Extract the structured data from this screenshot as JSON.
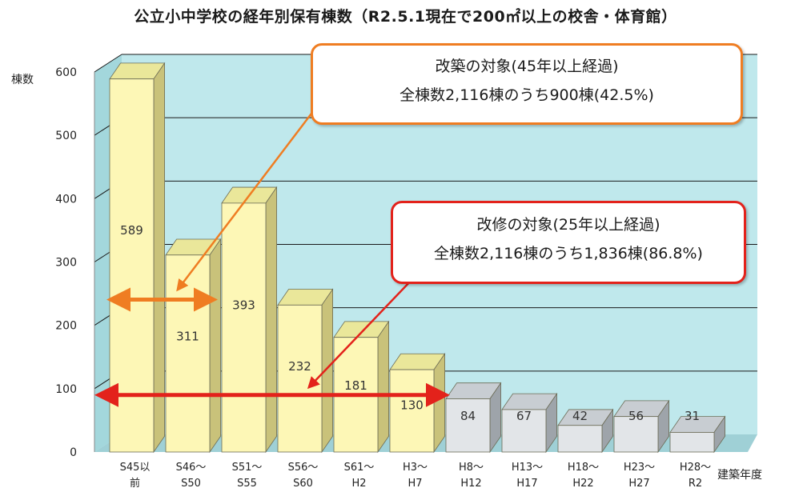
{
  "chart_data": {
    "type": "bar",
    "title": "公立小中学校の経年別保有棟数（R2.5.1現在で200㎡以上の校舎・体育館）",
    "ylabel": "棟数",
    "xlabel": "建築年度",
    "ylim": [
      0,
      600
    ],
    "yticks": [
      "0",
      "100",
      "200",
      "300",
      "400",
      "500",
      "600"
    ],
    "categories": [
      [
        "S45以",
        "前"
      ],
      [
        "S46～",
        "S50"
      ],
      [
        "S51～",
        "S55"
      ],
      [
        "S56～",
        "S60"
      ],
      [
        "S61～",
        "H2"
      ],
      [
        "H3～",
        "H7"
      ],
      [
        "H8～",
        "H12"
      ],
      [
        "H13～",
        "H17"
      ],
      [
        "H18～",
        "H22"
      ],
      [
        "H23～",
        "H27"
      ],
      [
        "H28～",
        "R2"
      ]
    ],
    "values": [
      589,
      311,
      393,
      232,
      181,
      130,
      84,
      67,
      42,
      56,
      31
    ],
    "value_labels": [
      "589",
      "311",
      "393",
      "232",
      "181",
      "130",
      "84",
      "67",
      "42",
      "56",
      "31"
    ],
    "colors": {
      "old_front": "#fdf7b6",
      "old_top": "#eae79a",
      "old_side": "#c9c27a",
      "new_front": "#e2e5e8",
      "new_top": "#c8cdd2",
      "new_side": "#9ea4aa",
      "wall": "#bfe8ec",
      "wall_side": "#a3d7dc",
      "floor": "#9fd0d6",
      "rebuild_accent": "#ef7d22",
      "repair_accent": "#e3221b"
    },
    "grid": true
  },
  "callouts": {
    "rebuild": {
      "line1": "改築の対象(45年以上経過)",
      "line2": "全棟数2,116棟のうち900棟(42.5%)",
      "old_bar_count": 2
    },
    "repair": {
      "line1": "改修の対象(25年以上経過)",
      "line2": "全棟数2,116棟のうち1,836棟(86.8%)",
      "old_bar_count": 6
    }
  }
}
